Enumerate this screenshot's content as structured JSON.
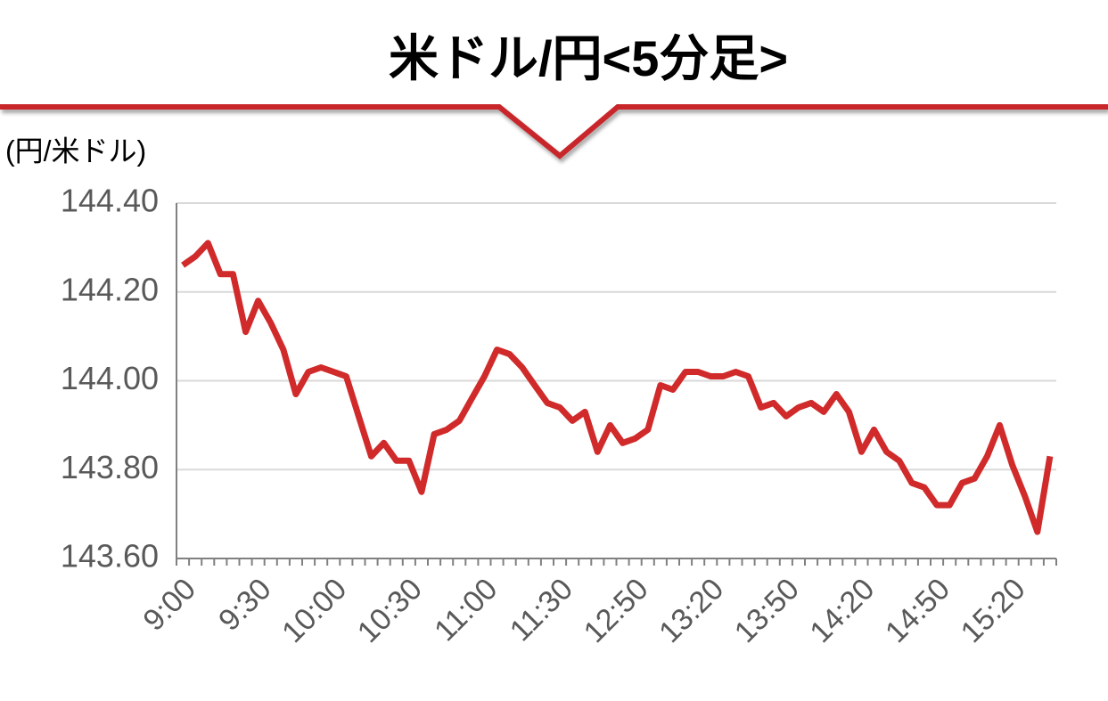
{
  "chart_data": {
    "type": "line",
    "title": "米ドル/円<5分足>",
    "y_label": "(円/米ドル)",
    "categories": [
      "9:00",
      null,
      null,
      null,
      null,
      null,
      "9:30",
      null,
      null,
      null,
      null,
      null,
      "10:00",
      null,
      null,
      null,
      null,
      null,
      "10:30",
      null,
      null,
      null,
      null,
      null,
      "11:00",
      null,
      null,
      null,
      null,
      null,
      "11:30",
      null,
      null,
      null,
      null,
      null,
      "12:50",
      null,
      null,
      null,
      null,
      null,
      "13:20",
      null,
      null,
      null,
      null,
      null,
      "13:50",
      null,
      null,
      null,
      null,
      null,
      "14:20",
      null,
      null,
      null,
      null,
      null,
      "14:50",
      null,
      null,
      null,
      null,
      null,
      "15:20",
      null,
      null,
      null
    ],
    "series": [
      {
        "name": "米ドル/円",
        "color": "#d02a2a",
        "values": [
          144.26,
          144.28,
          144.31,
          144.24,
          144.24,
          144.11,
          144.18,
          144.13,
          144.07,
          143.97,
          144.02,
          144.03,
          144.02,
          144.01,
          143.92,
          143.83,
          143.86,
          143.82,
          143.82,
          143.75,
          143.88,
          143.89,
          143.91,
          143.96,
          144.01,
          144.07,
          144.06,
          144.03,
          143.99,
          143.95,
          143.94,
          143.91,
          143.93,
          143.84,
          143.9,
          143.86,
          143.87,
          143.89,
          143.99,
          143.98,
          144.02,
          144.02,
          144.01,
          144.01,
          144.02,
          144.01,
          143.94,
          143.95,
          143.92,
          143.94,
          143.95,
          143.93,
          143.97,
          143.93,
          143.84,
          143.89,
          143.84,
          143.82,
          143.77,
          143.76,
          143.72,
          143.72,
          143.77,
          143.78,
          143.83,
          143.9,
          143.81,
          143.74,
          143.66,
          143.83
        ]
      }
    ],
    "ylim": [
      143.6,
      144.4
    ],
    "yticks": [
      {
        "value": 143.6,
        "label": "143.60"
      },
      {
        "value": 143.8,
        "label": "143.80"
      },
      {
        "value": 144.0,
        "label": "144.00"
      },
      {
        "value": 144.2,
        "label": "144.20"
      },
      {
        "value": 144.4,
        "label": "144.40"
      }
    ],
    "grid": true
  }
}
